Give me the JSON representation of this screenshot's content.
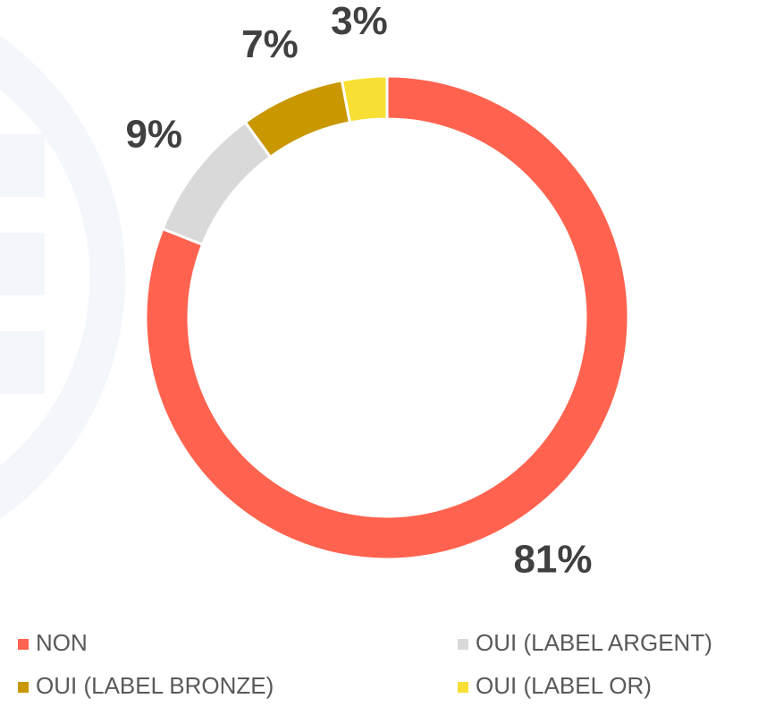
{
  "chart_data": {
    "type": "donut",
    "categories": [
      "NON",
      "OUI (LABEL ARGENT)",
      "OUI (LABEL BRONZE)",
      "OUI (LABEL OR)"
    ],
    "values": [
      81,
      9,
      7,
      3
    ],
    "value_labels": [
      "81%",
      "9%",
      "7%",
      "3%"
    ],
    "colors": [
      "#ff624e",
      "#d9d9d9",
      "#c99700",
      "#f7df33"
    ],
    "legend": "bottom"
  }
}
